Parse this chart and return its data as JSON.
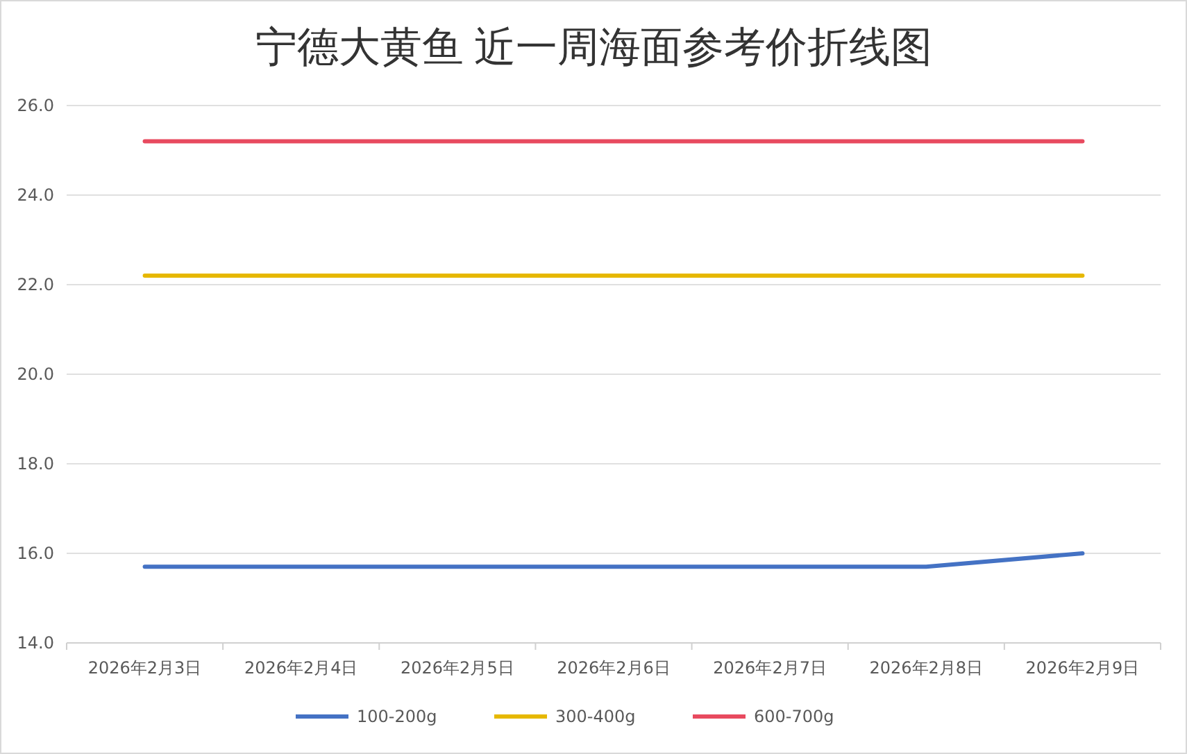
{
  "chart_data": {
    "type": "line",
    "title": "宁德大黄鱼 近一周海面参考价折线图",
    "categories": [
      "2026年2月3日",
      "2026年2月4日",
      "2026年2月5日",
      "2026年2月6日",
      "2026年2月7日",
      "2026年2月8日",
      "2026年2月9日"
    ],
    "series": [
      {
        "name": "100-200g",
        "color": "#4472c4",
        "values": [
          15.7,
          15.7,
          15.7,
          15.7,
          15.7,
          15.7,
          16.0
        ]
      },
      {
        "name": "300-400g",
        "color": "#e6b800",
        "values": [
          22.2,
          22.2,
          22.2,
          22.2,
          22.2,
          22.2,
          22.2
        ]
      },
      {
        "name": "600-700g",
        "color": "#e84a5f",
        "values": [
          25.2,
          25.2,
          25.2,
          25.2,
          25.2,
          25.2,
          25.2
        ]
      }
    ],
    "ylim": [
      14,
      26
    ],
    "yticks": [
      {
        "value": 14,
        "label": "14.0"
      },
      {
        "value": 16,
        "label": "16.0"
      },
      {
        "value": 18,
        "label": "18.0"
      },
      {
        "value": 20,
        "label": "20.0"
      },
      {
        "value": 22,
        "label": "22.0"
      },
      {
        "value": 24,
        "label": "24.0"
      },
      {
        "value": 26,
        "label": "26.0"
      }
    ],
    "grid": "y",
    "legend": "bottom",
    "marker": "none",
    "line_style": "solid"
  }
}
